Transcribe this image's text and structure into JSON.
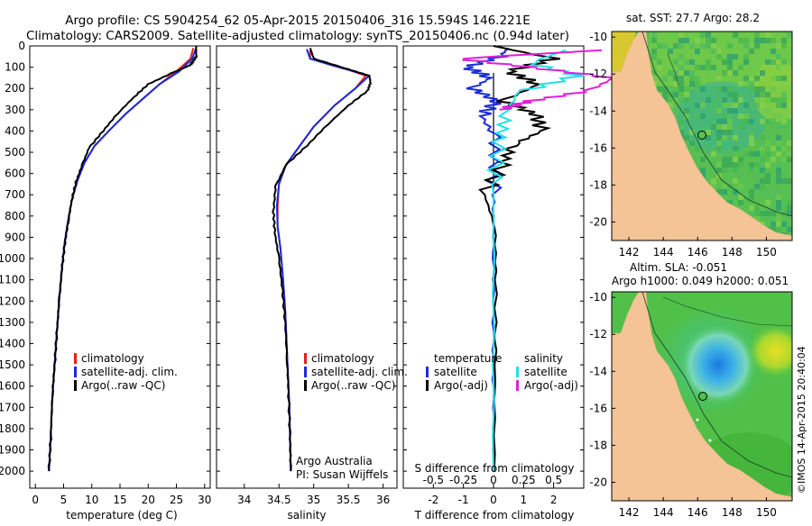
{
  "header": {
    "title_line1": "Argo profile: CS 5904254_62 05-Apr-2015 20150406_316 15.594S 146.221E",
    "title_line2": "Climatology: CARS2009. Satellite-adjusted climatology: synTS_20150406.nc (0.94d later)"
  },
  "colors": {
    "climatology": "#e8201a",
    "satellite": "#1a2adc",
    "argo": "#000000",
    "s_satellite": "#22e0e8",
    "s_argo": "#e020d8",
    "land": "#f4c496",
    "ocean_green": "#3cb43c"
  },
  "chart_data": [
    {
      "id": "temperature",
      "type": "line",
      "xlabel": "temperature (deg C)",
      "ylabel": "",
      "xlim": [
        -1,
        31
      ],
      "ylim": [
        2080,
        0
      ],
      "xticks": [
        "0",
        "5",
        "10",
        "15",
        "20",
        "25",
        "30"
      ],
      "xtick_values": [
        0,
        5,
        10,
        15,
        20,
        25,
        30
      ],
      "yticks": [
        "0",
        "100",
        "200",
        "300",
        "400",
        "500",
        "600",
        "700",
        "800",
        "900",
        "1000",
        "1100",
        "1200",
        "1300",
        "1400",
        "1500",
        "1600",
        "1700",
        "1800",
        "1900",
        "2000"
      ],
      "ytick_values": [
        0,
        100,
        200,
        300,
        400,
        500,
        600,
        700,
        800,
        900,
        1000,
        1100,
        1200,
        1300,
        1400,
        1500,
        1600,
        1700,
        1800,
        1900,
        2000
      ],
      "legend": [
        "climatology",
        "satellite-adj. clim.",
        "Argo(..raw -QC)"
      ],
      "legend_colors": [
        "#e8201a",
        "#1a2adc",
        "#000000"
      ],
      "series": [
        {
          "name": "climatology",
          "color": "#e8201a",
          "x": [
            28,
            27.5,
            25,
            22,
            19,
            16,
            13,
            10.5,
            8.7,
            7.5,
            6.5,
            5.8,
            5.2,
            4.7,
            4.2,
            3.8,
            3.4,
            3.0,
            2.7,
            2.4
          ],
          "y": [
            10,
            60,
            120,
            180,
            250,
            320,
            400,
            470,
            550,
            630,
            720,
            820,
            920,
            1050,
            1200,
            1350,
            1500,
            1650,
            1850,
            2000
          ]
        },
        {
          "name": "satellite-adj. clim.",
          "color": "#1a2adc",
          "x": [
            28.5,
            27.8,
            25.5,
            22,
            19,
            16,
            13,
            10.5,
            8.7,
            7.5,
            6.5,
            5.8,
            5.2,
            4.7,
            4.2,
            3.8,
            3.4,
            3.0,
            2.7,
            2.4
          ],
          "y": [
            10,
            60,
            120,
            180,
            250,
            320,
            400,
            470,
            550,
            630,
            720,
            820,
            920,
            1050,
            1200,
            1350,
            1500,
            1650,
            1850,
            2000
          ]
        },
        {
          "name": "Argo(..raw -QC)",
          "color": "#000000",
          "x": [
            28.5,
            28.5,
            28,
            27.5,
            24,
            20,
            17.5,
            14.5,
            12,
            9.5,
            8.3,
            7.2,
            6.4,
            5.8,
            5.2,
            4.7,
            4.2,
            3.8,
            3.4,
            3.0,
            2.7,
            2.4
          ],
          "y": [
            0,
            50,
            70,
            90,
            130,
            180,
            240,
            320,
            400,
            480,
            560,
            640,
            730,
            830,
            930,
            1050,
            1200,
            1350,
            1500,
            1650,
            1850,
            2000
          ]
        }
      ]
    },
    {
      "id": "salinity",
      "type": "line",
      "xlabel": "salinity",
      "xlim": [
        33.6,
        36.2
      ],
      "ylim": [
        2080,
        0
      ],
      "xticks": [
        "34",
        "34.5",
        "35",
        "35.5",
        "36"
      ],
      "xtick_values": [
        34,
        34.5,
        35,
        35.5,
        36
      ],
      "legend": [
        "climatology",
        "satellite-adj. clim.",
        "Argo(..raw -QC)"
      ],
      "legend_colors": [
        "#e8201a",
        "#1a2adc",
        "#000000"
      ],
      "annotation_line1": "Argo Australia",
      "annotation_line2": "PI: Susan Wijffels",
      "series": [
        {
          "name": "climatology",
          "color": "#e8201a",
          "x": [
            34.95,
            34.95,
            35.3,
            35.75,
            35.6,
            35.3,
            35.0,
            34.8,
            34.6,
            34.5,
            34.48,
            34.48,
            34.52,
            34.56,
            34.59,
            34.61,
            34.63,
            34.65,
            34.66,
            34.67
          ],
          "y": [
            20,
            60,
            90,
            140,
            200,
            280,
            380,
            470,
            560,
            650,
            750,
            850,
            950,
            1100,
            1250,
            1400,
            1550,
            1700,
            1850,
            2000
          ]
        },
        {
          "name": "satellite-adj. clim.",
          "color": "#1a2adc",
          "x": [
            34.9,
            34.95,
            35.25,
            35.8,
            35.6,
            35.3,
            35.0,
            34.8,
            34.6,
            34.5,
            34.47,
            34.48,
            34.52,
            34.56,
            34.59,
            34.61,
            34.63,
            34.65,
            34.66,
            34.67
          ],
          "y": [
            15,
            60,
            90,
            140,
            200,
            280,
            380,
            470,
            560,
            650,
            750,
            850,
            950,
            1100,
            1250,
            1400,
            1550,
            1700,
            1850,
            2000
          ]
        },
        {
          "name": "Argo(..raw -QC)",
          "color": "#000000",
          "x": [
            34.95,
            35.0,
            35.5,
            35.8,
            35.82,
            35.78,
            35.5,
            35.2,
            34.9,
            34.6,
            34.45,
            34.42,
            34.44,
            34.5,
            34.55,
            34.59,
            34.62,
            34.64,
            34.66,
            34.67
          ],
          "y": [
            10,
            60,
            110,
            140,
            170,
            210,
            280,
            370,
            470,
            560,
            660,
            780,
            880,
            1000,
            1150,
            1300,
            1500,
            1650,
            1850,
            2000
          ]
        }
      ]
    },
    {
      "id": "difference",
      "type": "line",
      "xlabel": "T difference from climatology",
      "xlabel_top": "S difference from climatology",
      "xlim": [
        -3,
        3
      ],
      "ylim": [
        2080,
        0
      ],
      "xticks": [
        "-2",
        "-1",
        "0",
        "1",
        "2"
      ],
      "xtick_values": [
        -2,
        -1,
        0,
        1,
        2
      ],
      "s_xticks": [
        "-0.5",
        "-0.25",
        "0",
        "0.25",
        "0.5"
      ],
      "s_xtick_values": [
        -0.5,
        -0.25,
        0,
        0.25,
        0.5
      ],
      "legend_t_title": "temperature",
      "legend_s_title": "salinity",
      "legend_t": [
        "satellite",
        "Argo(-adj)"
      ],
      "legend_s": [
        "satellite",
        "Argo(-adj)"
      ],
      "series": [
        {
          "name": "T satellite",
          "color": "#1a2adc",
          "x": [
            0.5,
            0.2,
            -0.9,
            -0.1,
            -0.7,
            0.1,
            -0.4,
            0.05,
            0,
            0,
            0,
            0,
            0,
            0
          ],
          "y": [
            10,
            50,
            100,
            150,
            200,
            260,
            330,
            430,
            600,
            800,
            1000,
            1300,
            1700,
            2000
          ]
        },
        {
          "name": "T Argo(-adj)",
          "color": "#000000",
          "x": [
            0,
            2.0,
            0.5,
            1.5,
            0.3,
            1.4,
            1.6,
            0.6,
            0.3,
            -0.3,
            0.05,
            0.08,
            0.05,
            0.02
          ],
          "y": [
            0,
            60,
            120,
            180,
            260,
            320,
            400,
            470,
            560,
            700,
            850,
            1100,
            1500,
            2000
          ]
        },
        {
          "name": "S satellite",
          "color": "#22e0e8",
          "x": [
            0.6,
            0.3,
            0.7,
            0.2,
            0.1,
            0.05,
            0,
            0,
            0
          ],
          "y": [
            20,
            80,
            140,
            220,
            330,
            450,
            650,
            1000,
            2000
          ]
        },
        {
          "name": "S Argo(-adj)",
          "color": "#e020d8",
          "x": [
            0.9,
            -0.3,
            0.3,
            1.0,
            0.8,
            0.3,
            0.05
          ],
          "y": [
            20,
            60,
            100,
            150,
            210,
            260,
            300
          ]
        }
      ]
    },
    {
      "id": "sst_map",
      "type": "heatmap",
      "title": "sat. SST: 27.7  Argo: 28.2",
      "xlim": [
        141,
        151.5
      ],
      "ylim": [
        -21,
        -9.7
      ],
      "xticks": [
        "142",
        "144",
        "146",
        "148",
        "150"
      ],
      "xtick_values": [
        142,
        144,
        146,
        148,
        150
      ],
      "yticks": [
        "-10",
        "-12",
        "-14",
        "-16",
        "-18",
        "-20"
      ],
      "ytick_values": [
        -10,
        -12,
        -14,
        -16,
        -18,
        -20
      ],
      "marker": {
        "lon": 146.2,
        "lat": -15.6
      }
    },
    {
      "id": "sla_map",
      "type": "heatmap",
      "title_line1": "Altim. SLA: -0.051",
      "title_line2": "Argo h1000: 0.049 h2000: 0.051",
      "xlim": [
        141,
        151.5
      ],
      "ylim": [
        -21,
        -9.7
      ],
      "xticks": [
        "142",
        "144",
        "146",
        "148",
        "150"
      ],
      "xtick_values": [
        142,
        144,
        146,
        148,
        150
      ],
      "yticks": [
        "-10",
        "-12",
        "-14",
        "-16",
        "-18",
        "-20"
      ],
      "ytick_values": [
        -10,
        -12,
        -14,
        -16,
        -18,
        -20
      ],
      "marker": {
        "lon": 146.2,
        "lat": -15.6
      }
    }
  ],
  "footer": {
    "credit": "©IMOS 14-Apr-2015 20:40:04"
  }
}
